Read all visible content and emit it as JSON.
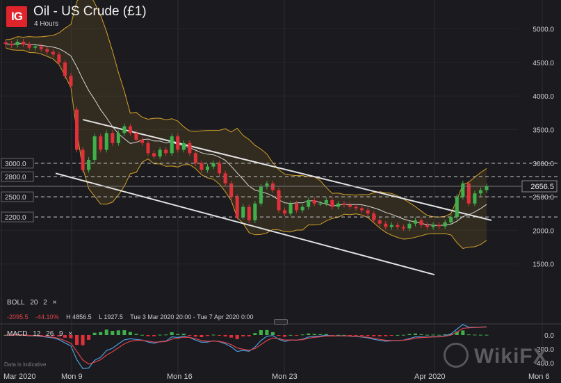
{
  "header": {
    "logo_text": "IG",
    "title": "Oil - US Crude (£1)",
    "timeframe": "4 Hours"
  },
  "colors": {
    "background": "#1b1b1f",
    "up_candle": "#3fb04b",
    "down_candle": "#e0303a",
    "band": "#d4a12a",
    "midline": "#d8d8d8",
    "trendline": "#e2e2e2",
    "macd_line": "#4a9fe0",
    "signal_line": "#e0424a"
  },
  "indicators": {
    "boll_label": "BOLL",
    "boll_period": "20",
    "boll_dev": "2",
    "close": "×",
    "change_abs": "-2095.5",
    "change_pct": "-44.10%",
    "high": "H 4856.5",
    "low": "L 1927.5",
    "range": "Tue 3 Mar 2020 20:00 - Tue 7 Apr 2020 0:00",
    "macd_label": "MACD",
    "macd_fast": "12",
    "macd_slow": "26",
    "macd_signal": "9"
  },
  "disclaimer": "Data is indicative",
  "watermark": "WikiFX",
  "chart_data": {
    "type": "candlestick",
    "y_ticks": [
      "5000.0",
      "4500.0",
      "4000.0",
      "3500.0",
      "3000.0",
      "2500.0",
      "2000.0",
      "1500.0"
    ],
    "ylim": [
      1000,
      5400
    ],
    "x_labels": [
      "Mar 2020",
      "Mon 9",
      "Mon 16",
      "Mon 23",
      "Apr 2020",
      "Mon 6"
    ],
    "horizontal_levels": [
      {
        "label": "3000.0",
        "value": 3000
      },
      {
        "label": "2800.0",
        "value": 2800
      },
      {
        "label": "2500.0",
        "value": 2500
      },
      {
        "label": "2200.0",
        "value": 2200
      }
    ],
    "current_price": "2656.5",
    "macd_ticks": [
      "0.0",
      "-200.0",
      "-400.0"
    ],
    "macd_ylim": [
      -460,
      120
    ],
    "candles": [
      [
        4800,
        4780
      ],
      [
        4780,
        4760
      ],
      [
        4760,
        4810
      ],
      [
        4810,
        4770
      ],
      [
        4770,
        4720
      ],
      [
        4720,
        4740
      ],
      [
        4740,
        4700
      ],
      [
        4700,
        4660
      ],
      [
        4660,
        4620
      ],
      [
        4620,
        4500
      ],
      [
        4500,
        4300
      ],
      [
        4300,
        4150
      ],
      [
        3800,
        3200
      ],
      [
        3200,
        2900
      ],
      [
        2900,
        3050
      ],
      [
        3050,
        3400
      ],
      [
        3400,
        3200
      ],
      [
        3200,
        3450
      ],
      [
        3450,
        3300
      ],
      [
        3300,
        3450
      ],
      [
        3450,
        3550
      ],
      [
        3550,
        3450
      ],
      [
        3450,
        3350
      ],
      [
        3350,
        3300
      ],
      [
        3300,
        3150
      ],
      [
        3150,
        3100
      ],
      [
        3100,
        3200
      ],
      [
        3200,
        3150
      ],
      [
        3150,
        3400
      ],
      [
        3400,
        3200
      ],
      [
        3200,
        3300
      ],
      [
        3300,
        3150
      ],
      [
        3150,
        3000
      ],
      [
        3000,
        2900
      ],
      [
        2900,
        2950
      ],
      [
        2950,
        3000
      ],
      [
        3000,
        2850
      ],
      [
        2850,
        2700
      ],
      [
        2700,
        2500
      ],
      [
        2500,
        2200
      ],
      [
        2200,
        2350
      ],
      [
        2350,
        2150
      ],
      [
        2150,
        2400
      ],
      [
        2400,
        2650
      ],
      [
        2650,
        2700
      ],
      [
        2700,
        2600
      ],
      [
        2600,
        2300
      ],
      [
        2300,
        2250
      ],
      [
        2250,
        2400
      ],
      [
        2400,
        2300
      ],
      [
        2300,
        2350
      ],
      [
        2350,
        2450
      ],
      [
        2450,
        2400
      ],
      [
        2400,
        2400
      ],
      [
        2400,
        2450
      ],
      [
        2450,
        2350
      ],
      [
        2350,
        2400
      ],
      [
        2400,
        2380
      ],
      [
        2380,
        2350
      ],
      [
        2350,
        2330
      ],
      [
        2330,
        2300
      ],
      [
        2300,
        2250
      ],
      [
        2250,
        2150
      ],
      [
        2150,
        2100
      ],
      [
        2100,
        2050
      ],
      [
        2050,
        2080
      ],
      [
        2080,
        2050
      ],
      [
        2050,
        2030
      ],
      [
        2030,
        2100
      ],
      [
        2100,
        2150
      ],
      [
        2150,
        2080
      ],
      [
        2080,
        2050
      ],
      [
        2050,
        2080
      ],
      [
        2080,
        2060
      ],
      [
        2060,
        2120
      ],
      [
        2120,
        2200
      ],
      [
        2200,
        2500
      ],
      [
        2500,
        2700
      ],
      [
        2700,
        2400
      ],
      [
        2400,
        2550
      ],
      [
        2550,
        2600
      ],
      [
        2600,
        2656
      ]
    ]
  }
}
